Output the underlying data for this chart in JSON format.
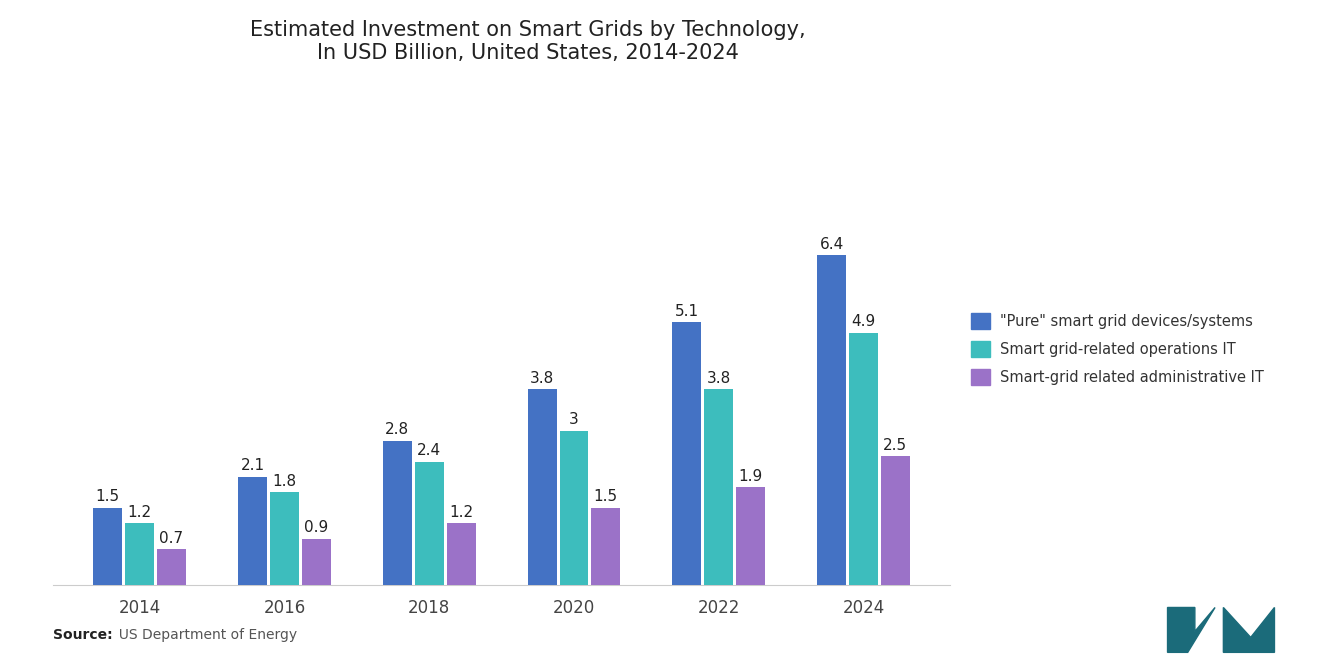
{
  "title": "Estimated Investment on Smart Grids by Technology,\nIn USD Billion, United States, 2014-2024",
  "categories": [
    "2014",
    "2016",
    "2018",
    "2020",
    "2022",
    "2024"
  ],
  "series": {
    "pure": [
      1.5,
      2.1,
      2.8,
      3.8,
      5.1,
      6.4
    ],
    "operations": [
      1.2,
      1.8,
      2.4,
      3.0,
      3.8,
      4.9
    ],
    "administrative": [
      0.7,
      0.9,
      1.2,
      1.5,
      1.9,
      2.5
    ]
  },
  "colors": {
    "pure": "#4472C4",
    "operations": "#3DBDBD",
    "administrative": "#9B72C8"
  },
  "legend_labels": [
    "\"Pure\" smart grid devices/systems",
    "Smart grid-related operations IT",
    "Smart-grid related administrative IT"
  ],
  "source_bold": "Source:",
  "source_rest": "  US Department of Energy",
  "background_color": "#FFFFFF",
  "title_fontsize": 15,
  "label_fontsize": 11,
  "bar_width": 0.2,
  "ylim": [
    0,
    8.0
  ]
}
